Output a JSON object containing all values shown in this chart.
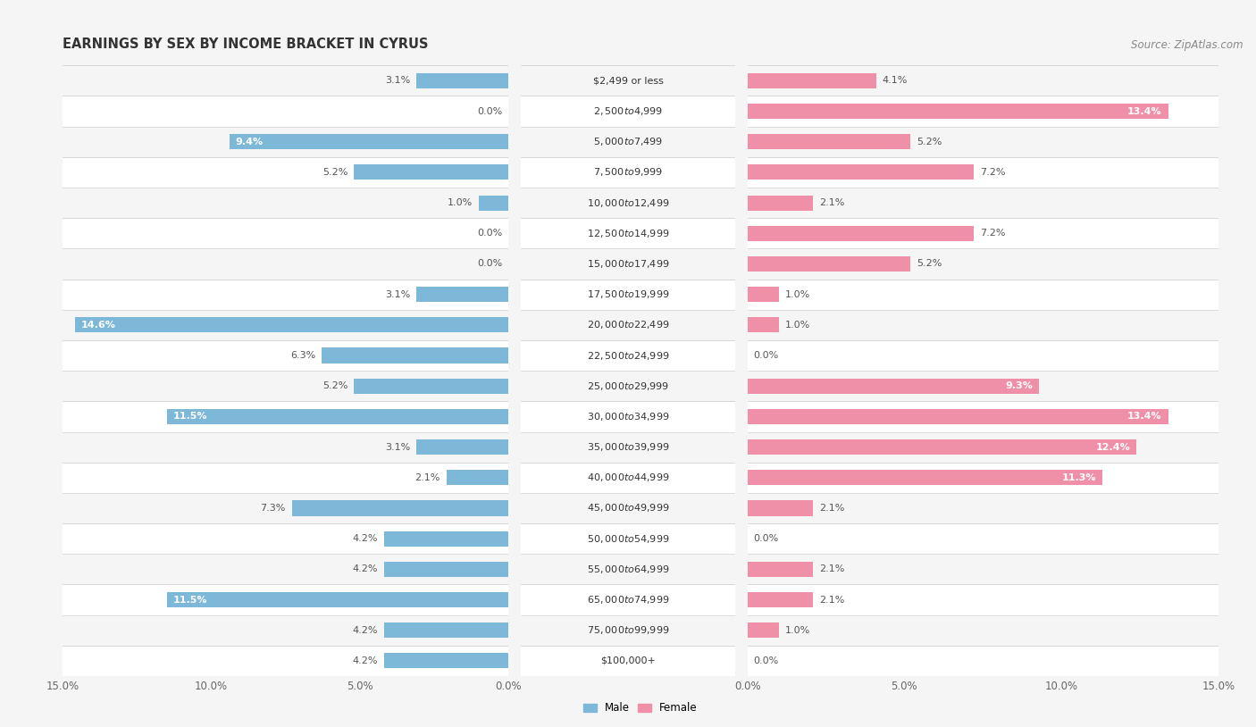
{
  "title": "EARNINGS BY SEX BY INCOME BRACKET IN CYRUS",
  "source": "Source: ZipAtlas.com",
  "categories": [
    "$2,499 or less",
    "$2,500 to $4,999",
    "$5,000 to $7,499",
    "$7,500 to $9,999",
    "$10,000 to $12,499",
    "$12,500 to $14,999",
    "$15,000 to $17,499",
    "$17,500 to $19,999",
    "$20,000 to $22,499",
    "$22,500 to $24,999",
    "$25,000 to $29,999",
    "$30,000 to $34,999",
    "$35,000 to $39,999",
    "$40,000 to $44,999",
    "$45,000 to $49,999",
    "$50,000 to $54,999",
    "$55,000 to $64,999",
    "$65,000 to $74,999",
    "$75,000 to $99,999",
    "$100,000+"
  ],
  "male": [
    3.1,
    0.0,
    9.4,
    5.2,
    1.0,
    0.0,
    0.0,
    3.1,
    14.6,
    6.3,
    5.2,
    11.5,
    3.1,
    2.1,
    7.3,
    4.2,
    4.2,
    11.5,
    4.2,
    4.2
  ],
  "female": [
    4.1,
    13.4,
    5.2,
    7.2,
    2.1,
    7.2,
    5.2,
    1.0,
    1.0,
    0.0,
    9.3,
    13.4,
    12.4,
    11.3,
    2.1,
    0.0,
    2.1,
    2.1,
    1.0,
    0.0
  ],
  "male_color": "#7db8d8",
  "female_color": "#f090a8",
  "male_label": "Male",
  "female_label": "Female",
  "xlim": 15.0,
  "bg_light": "#f5f5f5",
  "bg_white": "#ffffff",
  "title_fontsize": 10.5,
  "source_fontsize": 8.5,
  "label_fontsize": 8.0,
  "tick_fontsize": 8.5,
  "value_fontsize": 8.0
}
